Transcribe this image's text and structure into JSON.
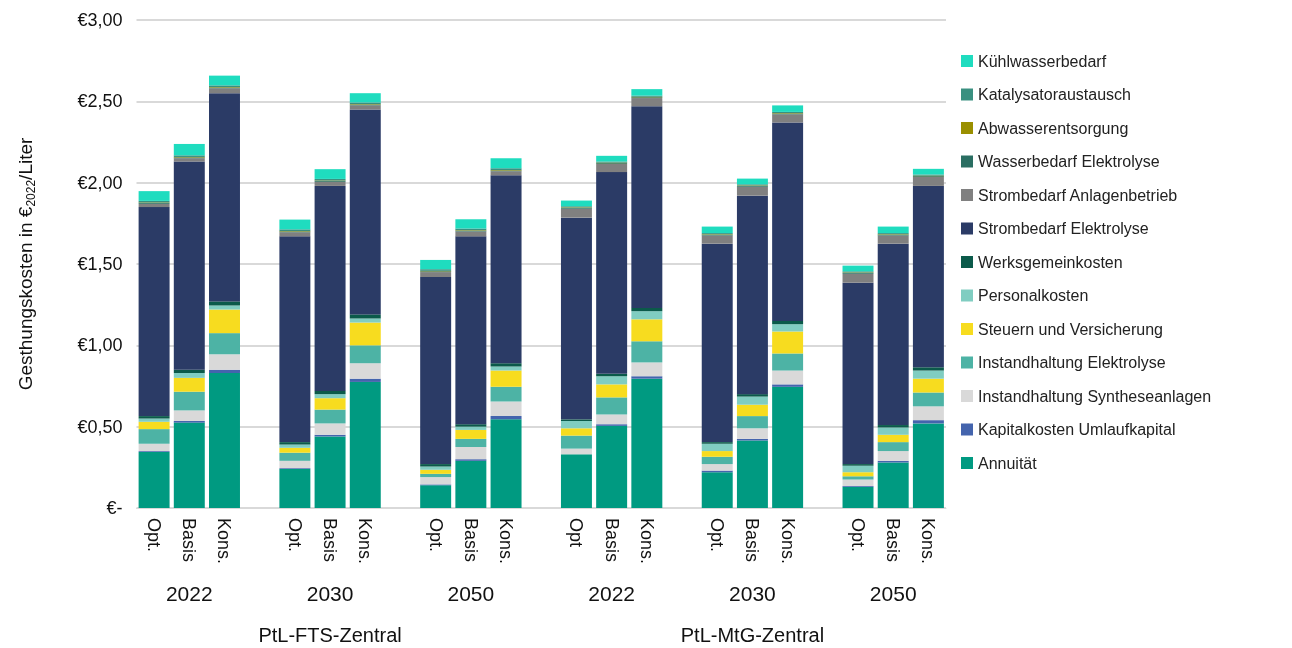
{
  "chart_data": {
    "type": "bar",
    "stacked": true,
    "ylabel": "Gesthungskosten in €$_{2022}$/Liter",
    "categories": [
      "Opt.",
      "Basis",
      "Kons.",
      null,
      "Opt.",
      "Basis",
      "Kons.",
      null,
      "Opt.",
      "Basis",
      "Kons.",
      null,
      "Opt",
      "Basis",
      "Kons.",
      null,
      "Opt.",
      "Basis",
      "Kons.",
      null,
      "Opt.",
      "Basis",
      "Kons."
    ],
    "annotations": [
      "2022",
      "2030",
      "2050",
      "2022",
      "2030",
      "2050",
      "PtL-FTS-Zentral",
      "PtL-MtG-Zentral"
    ],
    "ylim": [
      0,
      3
    ],
    "yticks": [
      {
        "value": 0,
        "label": "€-"
      },
      {
        "value": 0.5,
        "label": "€0,50"
      },
      {
        "value": 1,
        "label": "€1,00"
      },
      {
        "value": 1.5,
        "label": "€1,50"
      },
      {
        "value": 2,
        "label": "€2,00"
      },
      {
        "value": 2.5,
        "label": "€2,50"
      },
      {
        "value": 3,
        "label": "€3,00"
      }
    ],
    "grid": "y",
    "legend": "right",
    "series": [
      {
        "name": "Annuität",
        "color": "#009a81",
        "values": [
          0.345,
          0.525,
          0.83,
          null,
          0.24,
          0.44,
          0.775,
          null,
          0.14,
          0.29,
          0.545,
          null,
          0.33,
          0.505,
          0.795,
          null,
          0.22,
          0.415,
          0.745,
          null,
          0.13,
          0.28,
          0.52
        ]
      },
      {
        "name": "Kapitalkosten Umlaufkapital",
        "color": "#4464ad",
        "values": [
          0.005,
          0.01,
          0.02,
          null,
          0.005,
          0.01,
          0.02,
          null,
          0.005,
          0.01,
          0.02,
          null,
          null,
          0.01,
          0.015,
          null,
          0.01,
          0.01,
          0.015,
          null,
          0.005,
          0.01,
          0.02
        ]
      },
      {
        "name": "Instandhaltung Syntheseanlagen",
        "color": "#d9d9d9",
        "values": [
          0.045,
          0.065,
          0.095,
          null,
          0.045,
          0.07,
          0.095,
          null,
          0.045,
          0.075,
          0.09,
          null,
          0.035,
          0.06,
          0.085,
          null,
          0.04,
          0.065,
          0.085,
          null,
          0.04,
          0.06,
          0.085
        ]
      },
      {
        "name": "Instandhaltung Elektrolyse",
        "color": "#4db3a5",
        "values": [
          0.09,
          0.115,
          0.13,
          null,
          0.05,
          0.085,
          0.11,
          null,
          0.02,
          0.05,
          0.09,
          null,
          0.08,
          0.105,
          0.13,
          null,
          0.045,
          0.075,
          0.105,
          null,
          0.02,
          0.055,
          0.085
        ]
      },
      {
        "name": "Steuern und Versicherung",
        "color": "#f7dc1f",
        "values": [
          0.045,
          0.085,
          0.145,
          null,
          0.03,
          0.07,
          0.14,
          null,
          0.025,
          0.055,
          0.1,
          null,
          0.045,
          0.08,
          0.135,
          null,
          0.035,
          0.07,
          0.135,
          null,
          0.025,
          0.045,
          0.085
        ]
      },
      {
        "name": "Personalkosten",
        "color": "#80cdc1",
        "values": [
          0.02,
          0.03,
          0.025,
          null,
          0.02,
          0.025,
          0.025,
          null,
          0.02,
          0.02,
          0.025,
          null,
          0.045,
          0.05,
          0.05,
          null,
          0.045,
          0.05,
          0.045,
          null,
          0.04,
          0.045,
          0.05
        ]
      },
      {
        "name": "Werksgemeinkosten",
        "color": "#0b5a4a",
        "values": [
          0.015,
          0.02,
          0.025,
          null,
          0.015,
          0.02,
          0.025,
          null,
          0.015,
          0.015,
          0.02,
          null,
          0.01,
          0.015,
          0.02,
          null,
          0.01,
          0.015,
          0.02,
          null,
          0.01,
          0.015,
          0.02
        ]
      },
      {
        "name": "Strombedarf Elektrolyse",
        "color": "#2b3b66",
        "values": [
          1.285,
          1.28,
          1.28,
          null,
          1.265,
          1.26,
          1.26,
          null,
          1.15,
          1.155,
          1.155,
          null,
          1.24,
          1.24,
          1.24,
          null,
          1.22,
          1.22,
          1.22,
          null,
          1.115,
          1.115,
          1.115
        ]
      },
      {
        "name": "Strombedarf Anlagenbetrieb",
        "color": "#808080",
        "values": [
          0.02,
          0.02,
          0.03,
          null,
          0.025,
          0.025,
          0.025,
          null,
          0.03,
          0.03,
          0.025,
          null,
          0.055,
          0.05,
          0.05,
          null,
          0.05,
          0.055,
          0.05,
          null,
          0.055,
          0.05,
          0.055
        ]
      },
      {
        "name": "Wasserbedarf Elektrolyse",
        "color": "#2a6e62",
        "values": [
          0.005,
          0.005,
          0.005,
          null,
          0.005,
          0.005,
          0.005,
          null,
          0.005,
          0.005,
          0.005,
          null,
          0.005,
          0.005,
          0.005,
          null,
          0.005,
          0.005,
          0.005,
          null,
          0.005,
          0.005,
          0.005
        ]
      },
      {
        "name": "Abwasserentsorgung",
        "color": "#9a8f00",
        "values": [
          0.003,
          0.003,
          0.003,
          null,
          0.003,
          0.003,
          0.003,
          null,
          0.003,
          0.003,
          0.003,
          null,
          0.003,
          0.003,
          0.003,
          null,
          0.003,
          0.003,
          0.003,
          null,
          0.003,
          0.003,
          0.003
        ]
      },
      {
        "name": "Katalysatoraustausch",
        "color": "#3a9080",
        "values": [
          0.01,
          0.01,
          0.01,
          null,
          0.01,
          0.01,
          0.01,
          null,
          0.01,
          0.01,
          0.01,
          null,
          0.007,
          0.007,
          0.007,
          null,
          0.007,
          0.007,
          0.007,
          null,
          0.007,
          0.007,
          0.007
        ]
      },
      {
        "name": "Kühlwasserbedarf",
        "color": "#1fdcbf",
        "values": [
          0.06,
          0.07,
          0.06,
          null,
          0.06,
          0.06,
          0.057,
          null,
          0.057,
          0.057,
          0.062,
          null,
          0.035,
          0.035,
          0.04,
          null,
          0.04,
          0.035,
          0.04,
          null,
          0.035,
          0.04,
          0.035
        ]
      }
    ]
  }
}
